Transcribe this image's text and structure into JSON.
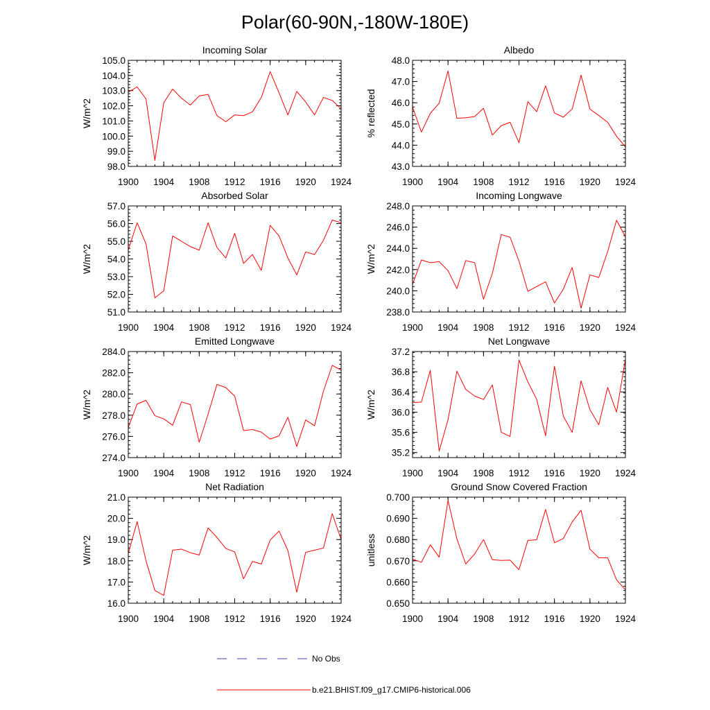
{
  "page_title": "Polar(60-90N,-180W-180E)",
  "colors": {
    "model": "#ff0000",
    "obs": "#3c3cb4",
    "frame": "#000000"
  },
  "legend": [
    {
      "label": "No Obs",
      "style": "dashed",
      "color": "#3c3cb4"
    },
    {
      "label": "b.e21.BHIST.f09_g17.CMIP6-historical.006",
      "style": "solid",
      "color": "#ff0000"
    }
  ],
  "chart_data": [
    {
      "type": "line",
      "title": "Incoming Solar",
      "ylabel": "W/m^2",
      "xlim": [
        1900,
        1924
      ],
      "xticks": [
        "1900",
        "1904",
        "1908",
        "1912",
        "1916",
        "1920",
        "1924"
      ],
      "ylim": [
        98.0,
        105.0
      ],
      "yticks": [
        "98.0",
        "99.0",
        "100.0",
        "101.0",
        "102.0",
        "103.0",
        "104.0",
        "105.0"
      ],
      "x": [
        1900,
        1901,
        1902,
        1903,
        1904,
        1905,
        1906,
        1907,
        1908,
        1909,
        1910,
        1911,
        1912,
        1913,
        1914,
        1915,
        1916,
        1917,
        1918,
        1919,
        1920,
        1921,
        1922,
        1923,
        1924
      ],
      "series": [
        {
          "values": [
            102.9,
            103.25,
            102.45,
            98.4,
            102.2,
            103.1,
            102.5,
            102.05,
            102.65,
            102.75,
            101.35,
            100.95,
            101.4,
            101.35,
            101.6,
            102.55,
            104.25,
            102.85,
            101.4,
            102.95,
            102.25,
            101.4,
            102.55,
            102.35,
            101.8
          ]
        }
      ]
    },
    {
      "type": "line",
      "title": "Albedo",
      "ylabel": "% reflected",
      "xlim": [
        1900,
        1924
      ],
      "xticks": [
        "1900",
        "1904",
        "1908",
        "1912",
        "1916",
        "1920",
        "1924"
      ],
      "ylim": [
        43.0,
        48.0
      ],
      "yticks": [
        "43.0",
        "44.0",
        "45.0",
        "46.0",
        "47.0",
        "48.0"
      ],
      "x": [
        1900,
        1901,
        1902,
        1903,
        1904,
        1905,
        1906,
        1907,
        1908,
        1909,
        1910,
        1911,
        1912,
        1913,
        1914,
        1915,
        1916,
        1917,
        1918,
        1919,
        1920,
        1921,
        1922,
        1923,
        1924
      ],
      "series": [
        {
          "values": [
            45.8,
            44.62,
            45.5,
            45.98,
            47.5,
            45.27,
            45.29,
            45.35,
            45.74,
            44.48,
            44.92,
            45.08,
            44.12,
            46.05,
            45.58,
            46.8,
            45.52,
            45.32,
            45.71,
            47.3,
            45.7,
            45.4,
            45.08,
            44.42,
            43.92
          ]
        }
      ]
    },
    {
      "type": "line",
      "title": "Absorbed Solar",
      "ylabel": "W/m^2",
      "xlim": [
        1900,
        1924
      ],
      "xticks": [
        "1900",
        "1904",
        "1908",
        "1912",
        "1916",
        "1920",
        "1924"
      ],
      "ylim": [
        51.0,
        57.0
      ],
      "yticks": [
        "51.0",
        "52.0",
        "53.0",
        "54.0",
        "55.0",
        "56.0",
        "57.0"
      ],
      "x": [
        1900,
        1901,
        1902,
        1903,
        1904,
        1905,
        1906,
        1907,
        1908,
        1909,
        1910,
        1911,
        1912,
        1913,
        1914,
        1915,
        1916,
        1917,
        1918,
        1919,
        1920,
        1921,
        1922,
        1923,
        1924
      ],
      "series": [
        {
          "values": [
            54.5,
            56.05,
            54.85,
            51.8,
            52.2,
            55.3,
            55.0,
            54.7,
            54.5,
            56.05,
            54.65,
            54.05,
            55.45,
            53.75,
            54.25,
            53.35,
            55.9,
            55.3,
            54.05,
            53.1,
            54.4,
            54.25,
            55.05,
            56.2,
            56.05
          ]
        }
      ]
    },
    {
      "type": "line",
      "title": "Incoming Longwave",
      "ylabel": "W/m^2",
      "xlim": [
        1900,
        1924
      ],
      "xticks": [
        "1900",
        "1904",
        "1908",
        "1912",
        "1916",
        "1920",
        "1924"
      ],
      "ylim": [
        238.0,
        248.0
      ],
      "yticks": [
        "238.0",
        "240.0",
        "242.0",
        "244.0",
        "246.0",
        "248.0"
      ],
      "x": [
        1900,
        1901,
        1902,
        1903,
        1904,
        1905,
        1906,
        1907,
        1908,
        1909,
        1910,
        1911,
        1912,
        1913,
        1914,
        1915,
        1916,
        1917,
        1918,
        1919,
        1920,
        1921,
        1922,
        1923,
        1924
      ],
      "series": [
        {
          "values": [
            240.6,
            242.9,
            242.65,
            242.75,
            241.9,
            240.2,
            242.85,
            242.65,
            239.2,
            241.65,
            245.3,
            245.05,
            242.8,
            239.95,
            240.4,
            240.85,
            238.85,
            240.15,
            242.2,
            238.35,
            241.5,
            241.25,
            243.7,
            246.65,
            245.1
          ]
        }
      ]
    },
    {
      "type": "line",
      "title": "Emitted Longwave",
      "ylabel": "W/m^2",
      "xlim": [
        1900,
        1924
      ],
      "xticks": [
        "1900",
        "1904",
        "1908",
        "1912",
        "1916",
        "1920",
        "1924"
      ],
      "ylim": [
        274.0,
        284.0
      ],
      "yticks": [
        "274.0",
        "276.0",
        "278.0",
        "280.0",
        "282.0",
        "284.0"
      ],
      "x": [
        1900,
        1901,
        1902,
        1903,
        1904,
        1905,
        1906,
        1907,
        1908,
        1909,
        1910,
        1911,
        1912,
        1913,
        1914,
        1915,
        1916,
        1917,
        1918,
        1919,
        1920,
        1921,
        1922,
        1923,
        1924
      ],
      "series": [
        {
          "values": [
            276.85,
            279.05,
            279.4,
            277.95,
            277.65,
            277.05,
            279.25,
            279.0,
            275.45,
            278.1,
            280.9,
            280.6,
            279.8,
            276.55,
            276.65,
            276.4,
            275.75,
            276.05,
            277.8,
            275.05,
            277.55,
            277.0,
            280.25,
            282.7,
            282.25
          ]
        }
      ]
    },
    {
      "type": "line",
      "title": "Net Longwave",
      "ylabel": "W/m^2",
      "xlim": [
        1900,
        1924
      ],
      "xticks": [
        "1900",
        "1904",
        "1908",
        "1912",
        "1916",
        "1920",
        "1924"
      ],
      "ylim": [
        35.1,
        37.2
      ],
      "yticks": [
        "35.2",
        "35.6",
        "36.0",
        "36.4",
        "36.8",
        "37.2"
      ],
      "x": [
        1900,
        1901,
        1902,
        1903,
        1904,
        1905,
        1906,
        1907,
        1908,
        1909,
        1910,
        1911,
        1912,
        1913,
        1914,
        1915,
        1916,
        1917,
        1918,
        1919,
        1920,
        1921,
        1922,
        1923,
        1924
      ],
      "series": [
        {
          "values": [
            36.19,
            36.2,
            36.83,
            35.23,
            35.85,
            36.81,
            36.45,
            36.32,
            36.25,
            36.54,
            35.6,
            35.52,
            37.03,
            36.6,
            36.25,
            35.53,
            36.91,
            35.92,
            35.6,
            36.62,
            36.05,
            35.75,
            36.49,
            36.0,
            37.05
          ]
        }
      ]
    },
    {
      "type": "line",
      "title": "Net Radiation",
      "ylabel": "W/m^2",
      "xlim": [
        1900,
        1924
      ],
      "xticks": [
        "1900",
        "1904",
        "1908",
        "1912",
        "1916",
        "1920",
        "1924"
      ],
      "ylim": [
        16.0,
        21.0
      ],
      "yticks": [
        "16.0",
        "17.0",
        "18.0",
        "19.0",
        "20.0",
        "21.0"
      ],
      "x": [
        1900,
        1901,
        1902,
        1903,
        1904,
        1905,
        1906,
        1907,
        1908,
        1909,
        1910,
        1911,
        1912,
        1913,
        1914,
        1915,
        1916,
        1917,
        1918,
        1919,
        1920,
        1921,
        1922,
        1923,
        1924
      ],
      "series": [
        {
          "values": [
            18.35,
            19.85,
            18.0,
            16.6,
            16.37,
            18.5,
            18.55,
            18.38,
            18.27,
            19.55,
            19.1,
            18.58,
            18.42,
            17.15,
            17.97,
            17.85,
            18.98,
            19.4,
            18.48,
            16.52,
            18.4,
            18.5,
            18.6,
            20.22,
            19.0
          ]
        }
      ]
    },
    {
      "type": "line",
      "title": "Ground Snow Covered Fraction",
      "ylabel": "unitless",
      "xlim": [
        1900,
        1924
      ],
      "xticks": [
        "1900",
        "1904",
        "1908",
        "1912",
        "1916",
        "1920",
        "1924"
      ],
      "ylim": [
        0.65,
        0.7
      ],
      "yticks": [
        "0.650",
        "0.660",
        "0.670",
        "0.680",
        "0.690",
        "0.700"
      ],
      "x": [
        1900,
        1901,
        1902,
        1903,
        1904,
        1905,
        1906,
        1907,
        1908,
        1909,
        1910,
        1911,
        1912,
        1913,
        1914,
        1915,
        1916,
        1917,
        1918,
        1919,
        1920,
        1921,
        1922,
        1923,
        1924
      ],
      "series": [
        {
          "values": [
            0.6708,
            0.6693,
            0.6775,
            0.6717,
            0.6985,
            0.6803,
            0.6685,
            0.6732,
            0.68,
            0.6705,
            0.6702,
            0.6703,
            0.6658,
            0.6796,
            0.6799,
            0.6942,
            0.6785,
            0.6805,
            0.6883,
            0.6938,
            0.6755,
            0.6714,
            0.6714,
            0.661,
            0.6563
          ]
        }
      ]
    }
  ]
}
